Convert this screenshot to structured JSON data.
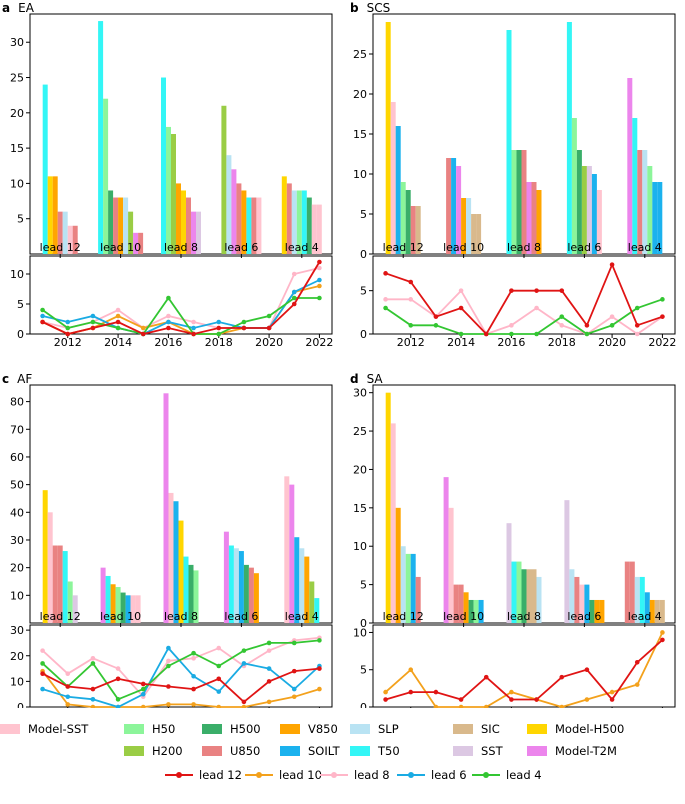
{
  "colors": {
    "H50": "#8cf59a",
    "H200": "#9acd45",
    "H500": "#3aae69",
    "U850": "#e98282",
    "V850": "#ffa500",
    "SOILT": "#1bb2ee",
    "SLP": "#b9e3f3",
    "T50": "#33f6f6",
    "SIC": "#d9b98c",
    "SST": "#dcc8e3",
    "Model-H500": "#ffd600",
    "Model-T2M": "#ec85ec",
    "Model-SST": "#ffc4cf",
    "lead 12": "#e01414",
    "lead 10": "#f3a11c",
    "lead 8": "#ffb6c8",
    "lead 6": "#1aabe3",
    "lead 4": "#33c632"
  },
  "legend": {
    "bars": [
      "H50",
      "H200",
      "H500",
      "U850",
      "V850",
      "SOILT",
      "SLP",
      "T50",
      "SIC",
      "SST",
      "Model-H500",
      "Model-T2M",
      "Model-SST"
    ],
    "lines": [
      "lead 12",
      "lead 10",
      "lead 8",
      "lead 6",
      "lead 4"
    ]
  },
  "chart_data": [
    {
      "panel": "a",
      "title": "EA",
      "type": "bar",
      "categories": [
        "lead 12",
        "lead 10",
        "lead 8",
        "lead 6",
        "lead 4"
      ],
      "ylim": [
        0,
        34
      ],
      "yticks": [
        5,
        10,
        15,
        20,
        25,
        30
      ],
      "groups": [
        [
          [
            "T50",
            24
          ],
          [
            "Model-H500",
            11
          ],
          [
            "V850",
            11
          ],
          [
            "U850",
            6
          ],
          [
            "SLP",
            6
          ],
          [
            "Model-SST",
            4
          ],
          [
            "U850",
            4
          ]
        ],
        [
          [
            "T50",
            33
          ],
          [
            "H50",
            22
          ],
          [
            "H500",
            9
          ],
          [
            "U850",
            8
          ],
          [
            "V850",
            8
          ],
          [
            "SLP",
            8
          ],
          [
            "H200",
            6
          ],
          [
            "Model-T2M",
            3
          ],
          [
            "U850",
            3
          ]
        ],
        [
          [
            "T50",
            25
          ],
          [
            "H50",
            18
          ],
          [
            "H200",
            17
          ],
          [
            "V850",
            10
          ],
          [
            "Model-H500",
            9
          ],
          [
            "U850",
            8
          ],
          [
            "Model-T2M",
            6
          ],
          [
            "SST",
            6
          ]
        ],
        [
          [
            "H200",
            21
          ],
          [
            "SLP",
            14
          ],
          [
            "Model-T2M",
            12
          ],
          [
            "U850",
            10
          ],
          [
            "V850",
            9
          ],
          [
            "T50",
            8
          ],
          [
            "U850",
            8
          ],
          [
            "Model-SST",
            8
          ]
        ],
        [
          [
            "Model-H500",
            11
          ],
          [
            "U850",
            10
          ],
          [
            "SLP",
            9
          ],
          [
            "H50",
            9
          ],
          [
            "T50",
            9
          ],
          [
            "H500",
            8
          ],
          [
            "Model-SST",
            7
          ],
          [
            "Model-SST",
            7
          ]
        ]
      ],
      "line": {
        "x": [
          2011,
          2012,
          2013,
          2014,
          2015,
          2016,
          2017,
          2018,
          2019,
          2020,
          2021,
          2022
        ],
        "ylim": [
          0,
          13
        ],
        "yticks": [
          0,
          5,
          10
        ],
        "xticks": [
          2012,
          2014,
          2016,
          2018,
          2020,
          2022
        ],
        "series": [
          {
            "name": "lead 12",
            "values": [
              2,
              0,
              1,
              2,
              0,
              1,
              0,
              1,
              1,
              1,
              5,
              12
            ]
          },
          {
            "name": "lead 10",
            "values": [
              2,
              0,
              1,
              3,
              1,
              2,
              0,
              0,
              1,
              1,
              7,
              8
            ]
          },
          {
            "name": "lead 8",
            "values": [
              2,
              1,
              2,
              4,
              1,
              3,
              2,
              1,
              1,
              1,
              10,
              11
            ]
          },
          {
            "name": "lead 6",
            "values": [
              3,
              2,
              3,
              1,
              0,
              2,
              1,
              2,
              1,
              1,
              7,
              9
            ]
          },
          {
            "name": "lead 4",
            "values": [
              4,
              1,
              2,
              1,
              0,
              6,
              0,
              0,
              2,
              3,
              6,
              6
            ]
          }
        ]
      }
    },
    {
      "panel": "b",
      "title": "SCS",
      "type": "bar",
      "categories": [
        "lead 12",
        "lead 10",
        "lead 8",
        "lead 6",
        "lead 4"
      ],
      "ylim": [
        0,
        30
      ],
      "yticks": [
        0,
        5,
        10,
        15,
        20,
        25
      ],
      "groups": [
        [
          [
            "Model-H500",
            29
          ],
          [
            "Model-SST",
            19
          ],
          [
            "SOILT",
            16
          ],
          [
            "H50",
            9
          ],
          [
            "H500",
            8
          ],
          [
            "U850",
            6
          ],
          [
            "SIC",
            6
          ]
        ],
        [
          [
            "U850",
            12
          ],
          [
            "SOILT",
            12
          ],
          [
            "Model-T2M",
            11
          ],
          [
            "V850",
            7
          ],
          [
            "SLP",
            7
          ],
          [
            "SIC",
            5
          ],
          [
            "SIC",
            5
          ]
        ],
        [
          [
            "T50",
            28
          ],
          [
            "H50",
            13
          ],
          [
            "H500",
            13
          ],
          [
            "U850",
            13
          ],
          [
            "Model-T2M",
            9
          ],
          [
            "U850",
            9
          ],
          [
            "V850",
            8
          ]
        ],
        [
          [
            "T50",
            29
          ],
          [
            "H50",
            17
          ],
          [
            "H500",
            13
          ],
          [
            "H200",
            11
          ],
          [
            "SST",
            11
          ],
          [
            "SOILT",
            10
          ],
          [
            "Model-SST",
            8
          ]
        ],
        [
          [
            "Model-T2M",
            22
          ],
          [
            "T50",
            17
          ],
          [
            "U850",
            13
          ],
          [
            "SLP",
            13
          ],
          [
            "H50",
            11
          ],
          [
            "SOILT",
            9
          ],
          [
            "SOILT",
            9
          ]
        ]
      ],
      "line": {
        "x": [
          2011,
          2012,
          2013,
          2014,
          2015,
          2016,
          2017,
          2018,
          2019,
          2020,
          2021,
          2022
        ],
        "ylim": [
          0,
          9
        ],
        "yticks": [
          0,
          5
        ],
        "xticks": [
          2012,
          2014,
          2016,
          2018,
          2020,
          2022
        ],
        "series": [
          {
            "name": "lead 12",
            "values": [
              7,
              6,
              2,
              3,
              0,
              5,
              5,
              5,
              1,
              8,
              1,
              2
            ]
          },
          {
            "name": "lead 8",
            "values": [
              4,
              4,
              2,
              5,
              0,
              1,
              3,
              1,
              0,
              2,
              0,
              2
            ]
          },
          {
            "name": "lead 4",
            "values": [
              3,
              1,
              1,
              0,
              0,
              0,
              0,
              2,
              0,
              1,
              3,
              4
            ]
          }
        ]
      }
    },
    {
      "panel": "c",
      "title": "AF",
      "type": "bar",
      "categories": [
        "lead 12",
        "lead 10",
        "lead 8",
        "lead 6",
        "lead 4"
      ],
      "ylim": [
        0,
        86
      ],
      "yticks": [
        10,
        20,
        30,
        40,
        50,
        60,
        70,
        80
      ],
      "groups": [
        [
          [
            "Model-H500",
            48
          ],
          [
            "Model-SST",
            40
          ],
          [
            "U850",
            28
          ],
          [
            "U850",
            28
          ],
          [
            "T50",
            26
          ],
          [
            "H50",
            15
          ],
          [
            "SST",
            10
          ]
        ],
        [
          [
            "Model-T2M",
            20
          ],
          [
            "T50",
            17
          ],
          [
            "V850",
            14
          ],
          [
            "H50",
            13
          ],
          [
            "H500",
            11
          ],
          [
            "SOILT",
            10
          ],
          [
            "Model-SST",
            10
          ],
          [
            "Model-SST",
            10
          ]
        ],
        [
          [
            "Model-T2M",
            83
          ],
          [
            "Model-SST",
            47
          ],
          [
            "SOILT",
            44
          ],
          [
            "Model-H500",
            37
          ],
          [
            "T50",
            24
          ],
          [
            "H500",
            21
          ],
          [
            "H50",
            19
          ]
        ],
        [
          [
            "Model-T2M",
            33
          ],
          [
            "T50",
            28
          ],
          [
            "SLP",
            27
          ],
          [
            "SOILT",
            26
          ],
          [
            "H500",
            21
          ],
          [
            "U850",
            20
          ],
          [
            "V850",
            18
          ]
        ],
        [
          [
            "Model-SST",
            53
          ],
          [
            "Model-T2M",
            50
          ],
          [
            "SOILT",
            31
          ],
          [
            "SLP",
            27
          ],
          [
            "V850",
            24
          ],
          [
            "H200",
            15
          ],
          [
            "T50",
            9
          ]
        ]
      ],
      "line": {
        "x": [
          2011,
          2012,
          2013,
          2014,
          2015,
          2016,
          2017,
          2018,
          2019,
          2020,
          2021,
          2022
        ],
        "ylim": [
          0,
          32
        ],
        "yticks": [
          0,
          10,
          20,
          30
        ],
        "xticks": [
          2012,
          2014,
          2016,
          2018,
          2020,
          2022
        ],
        "series": [
          {
            "name": "lead 12",
            "values": [
              13,
              8,
              7,
              11,
              9,
              8,
              7,
              11,
              2,
              10,
              14,
              15
            ]
          },
          {
            "name": "lead 10",
            "values": [
              14,
              1,
              0,
              0,
              0,
              1,
              1,
              0,
              0,
              2,
              4,
              7
            ]
          },
          {
            "name": "lead 8",
            "values": [
              22,
              13,
              19,
              15,
              4,
              18,
              19,
              23,
              16,
              22,
              26,
              27
            ]
          },
          {
            "name": "lead 6",
            "values": [
              7,
              4,
              3,
              0,
              5,
              23,
              12,
              6,
              17,
              15,
              7,
              16
            ]
          },
          {
            "name": "lead 4",
            "values": [
              17,
              8,
              17,
              3,
              7,
              16,
              21,
              16,
              22,
              25,
              25,
              26
            ]
          }
        ]
      }
    },
    {
      "panel": "d",
      "title": "SA",
      "type": "bar",
      "categories": [
        "lead 12",
        "lead 10",
        "lead 8",
        "lead 6",
        "lead 4"
      ],
      "ylim": [
        0,
        31
      ],
      "yticks": [
        0,
        5,
        10,
        15,
        20,
        25,
        30
      ],
      "groups": [
        [
          [
            "Model-H500",
            30
          ],
          [
            "Model-SST",
            26
          ],
          [
            "V850",
            15
          ],
          [
            "SLP",
            10
          ],
          [
            "H50",
            9
          ],
          [
            "SOILT",
            9
          ],
          [
            "U850",
            6
          ]
        ],
        [
          [
            "Model-T2M",
            19
          ],
          [
            "Model-SST",
            15
          ],
          [
            "U850",
            5
          ],
          [
            "U850",
            5
          ],
          [
            "V850",
            4
          ],
          [
            "H500",
            3
          ],
          [
            "H50",
            3
          ],
          [
            "SOILT",
            3
          ]
        ],
        [
          [
            "SST",
            13
          ],
          [
            "T50",
            8
          ],
          [
            "H50",
            8
          ],
          [
            "H500",
            7
          ],
          [
            "SIC",
            7
          ],
          [
            "SIC",
            7
          ],
          [
            "SLP",
            6
          ]
        ],
        [
          [
            "SST",
            16
          ],
          [
            "SLP",
            7
          ],
          [
            "U850",
            6
          ],
          [
            "Model-SST",
            5
          ],
          [
            "SOILT",
            5
          ],
          [
            "H500",
            3
          ],
          [
            "V850",
            3
          ],
          [
            "V850",
            3
          ]
        ],
        [
          [
            "U850",
            8
          ],
          [
            "U850",
            8
          ],
          [
            "SLP",
            6
          ],
          [
            "T50",
            6
          ],
          [
            "SOILT",
            4
          ],
          [
            "V850",
            3
          ],
          [
            "SIC",
            3
          ],
          [
            "SIC",
            3
          ]
        ]
      ],
      "line": {
        "x": [
          2011,
          2012,
          2013,
          2014,
          2015,
          2016,
          2017,
          2018,
          2019,
          2020,
          2021,
          2022
        ],
        "ylim": [
          0,
          11
        ],
        "yticks": [
          0,
          5,
          10
        ],
        "xticks": [
          2012,
          2014,
          2016,
          2018,
          2020,
          2022
        ],
        "series": [
          {
            "name": "lead 12",
            "values": [
              1,
              2,
              2,
              1,
              4,
              1,
              1,
              4,
              5,
              1,
              6,
              9
            ]
          },
          {
            "name": "lead 10",
            "values": [
              2,
              5,
              0,
              0,
              0,
              2,
              1,
              0,
              1,
              2,
              3,
              10
            ]
          }
        ]
      }
    }
  ]
}
